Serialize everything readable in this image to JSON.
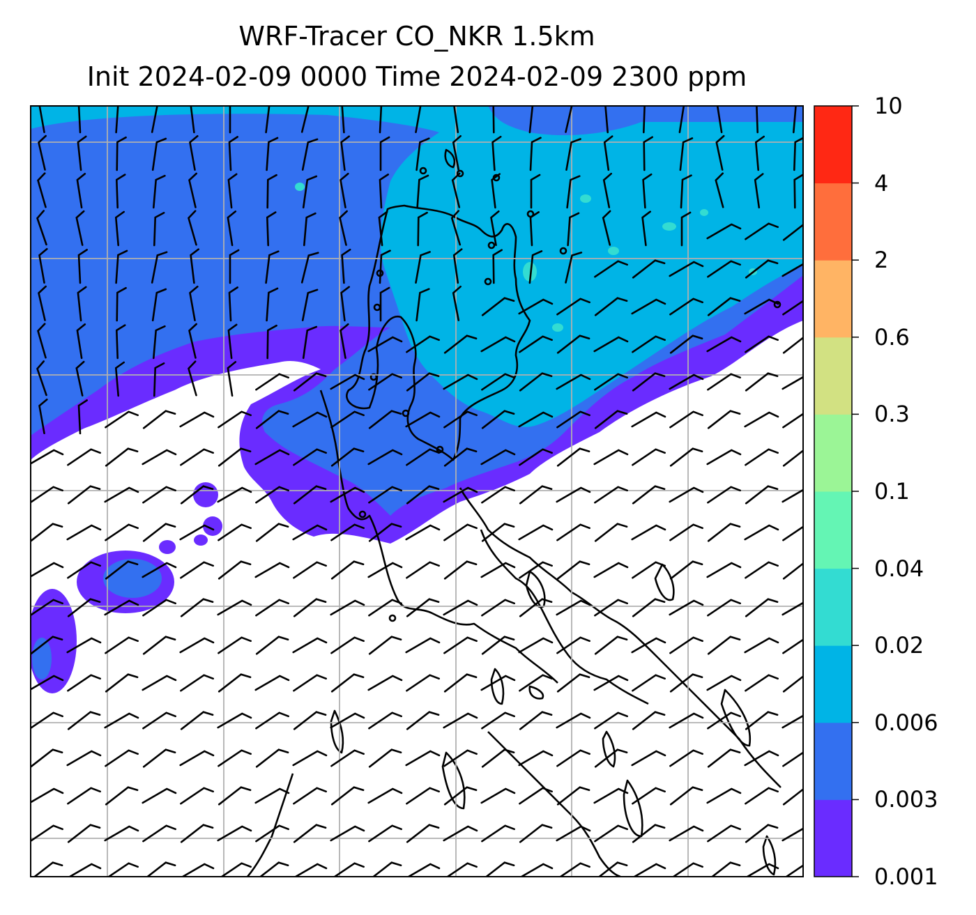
{
  "title": {
    "line1": "WRF-Tracer CO_NKR 1.5km",
    "line2": "Init 2024-02-09 0000 Time 2024-02-09 2300 ppm"
  },
  "colorbar": {
    "levels": [
      "0.001",
      "0.003",
      "0.006",
      "0.02",
      "0.04",
      "0.1",
      "0.3",
      "0.6",
      "2",
      "4",
      "10"
    ],
    "colors": [
      "#6a2cff",
      "#3370f0",
      "#00b4e6",
      "#33dcd2",
      "#64f5b4",
      "#9bf596",
      "#d2e182",
      "#ffb464",
      "#ff6e3c",
      "#ff2814"
    ]
  },
  "map": {
    "plume_colors": {
      "band_0_001": "#6a2cff",
      "band_0_003": "#3370f0",
      "band_0_006": "#00b4e6",
      "band_0_02": "#33dcd2"
    },
    "wind_barbs": "black-barbs",
    "coastline": "black-coastline",
    "gridlines": "gray-gridlines"
  }
}
